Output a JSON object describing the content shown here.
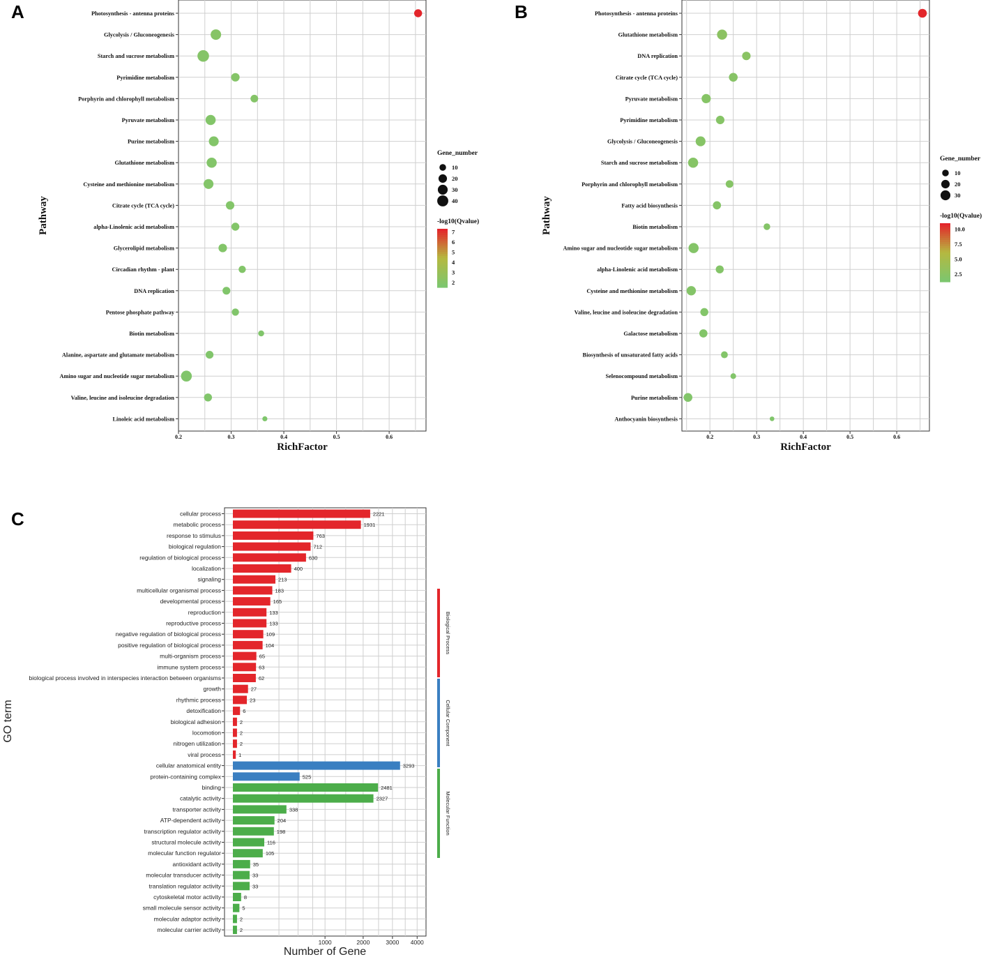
{
  "panels": {
    "A": "A",
    "B": "B",
    "C": "C"
  },
  "colors": {
    "low": "#7dc66e",
    "mid": "#b5b840",
    "high": "#e3262b",
    "bp": "#e3262b",
    "cc": "#3a7fc1",
    "mf": "#4cad4a",
    "grid": "#cfcfcf"
  },
  "chart_data": [
    {
      "id": "A",
      "type": "scatter",
      "xlabel": "RichFactor",
      "ylabel": "Pathway",
      "xlim": [
        0.2,
        0.67
      ],
      "xticks": [
        "0.2",
        "0.3",
        "0.4",
        "0.5",
        "0.6"
      ],
      "size_legend_title": "Gene_number",
      "size_legend": [
        "10",
        "20",
        "30",
        "40"
      ],
      "color_legend_title": "-log10(Qvalue)",
      "color_legend": [
        "7",
        "6",
        "5",
        "4",
        "3",
        "2"
      ],
      "color_range": [
        1.5,
        7.3
      ],
      "points": [
        {
          "pathway": "Photosynthesis - antenna proteins",
          "rich": 0.655,
          "genes": 17,
          "q": 7.3
        },
        {
          "pathway": "Glycolysis / Gluconeogenesis",
          "rich": 0.271,
          "genes": 35,
          "q": 2.0
        },
        {
          "pathway": "Starch and sucrose metabolism",
          "rich": 0.247,
          "genes": 45,
          "q": 1.9
        },
        {
          "pathway": "Pyrimidine metabolism",
          "rich": 0.308,
          "genes": 20,
          "q": 1.9
        },
        {
          "pathway": "Porphyrin and chlorophyll metabolism",
          "rich": 0.344,
          "genes": 15,
          "q": 1.9
        },
        {
          "pathway": "Pyruvate metabolism",
          "rich": 0.261,
          "genes": 32,
          "q": 1.8
        },
        {
          "pathway": "Purine metabolism",
          "rich": 0.267,
          "genes": 30,
          "q": 1.8
        },
        {
          "pathway": "Glutathione metabolism",
          "rich": 0.263,
          "genes": 32,
          "q": 1.8
        },
        {
          "pathway": "Cysteine and methionine metabolism",
          "rich": 0.257,
          "genes": 30,
          "q": 1.8
        },
        {
          "pathway": "Citrate cycle (TCA cycle)",
          "rich": 0.298,
          "genes": 20,
          "q": 1.8
        },
        {
          "pathway": "alpha-Linolenic acid metabolism",
          "rich": 0.308,
          "genes": 17,
          "q": 1.8
        },
        {
          "pathway": "Glycerolipid metabolism",
          "rich": 0.284,
          "genes": 20,
          "q": 1.8
        },
        {
          "pathway": "Circadian rhythm - plant",
          "rich": 0.321,
          "genes": 13,
          "q": 1.8
        },
        {
          "pathway": "DNA replication",
          "rich": 0.291,
          "genes": 16,
          "q": 1.7
        },
        {
          "pathway": "Pentose phosphate pathway",
          "rich": 0.308,
          "genes": 13,
          "q": 1.7
        },
        {
          "pathway": "Biotin metabolism",
          "rich": 0.357,
          "genes": 7,
          "q": 1.7
        },
        {
          "pathway": "Alanine, aspartate and glutamate metabolism",
          "rich": 0.259,
          "genes": 16,
          "q": 1.7
        },
        {
          "pathway": "Amino sugar and nucleotide sugar metabolism",
          "rich": 0.215,
          "genes": 38,
          "q": 1.7
        },
        {
          "pathway": "Valine, leucine and isoleucine degradation",
          "rich": 0.256,
          "genes": 17,
          "q": 1.7
        },
        {
          "pathway": "Linoleic acid metabolism",
          "rich": 0.364,
          "genes": 4,
          "q": 1.6
        }
      ]
    },
    {
      "id": "B",
      "type": "scatter",
      "xlabel": "RichFactor",
      "ylabel": "Pathway",
      "xlim": [
        0.14,
        0.67
      ],
      "xticks": [
        "0.2",
        "0.3",
        "0.4",
        "0.5",
        "0.6"
      ],
      "size_legend_title": "Gene_number",
      "size_legend": [
        "10",
        "20",
        "30"
      ],
      "color_legend_title": "-log10(Qvalue)",
      "color_legend": [
        "10.0",
        "7.5",
        "5.0",
        "2.5"
      ],
      "color_range": [
        1.2,
        11.0
      ],
      "points": [
        {
          "pathway": "Photosynthesis - antenna proteins",
          "rich": 0.655,
          "genes": 22,
          "q": 11.0
        },
        {
          "pathway": "Glutathione metabolism",
          "rich": 0.226,
          "genes": 32,
          "q": 2.5
        },
        {
          "pathway": "DNA replication",
          "rich": 0.278,
          "genes": 20,
          "q": 2.3
        },
        {
          "pathway": "Citrate cycle (TCA cycle)",
          "rich": 0.25,
          "genes": 22,
          "q": 2.1
        },
        {
          "pathway": "Pyruvate metabolism",
          "rich": 0.192,
          "genes": 25,
          "q": 2.0
        },
        {
          "pathway": "Pyrimidine metabolism",
          "rich": 0.222,
          "genes": 20,
          "q": 2.0
        },
        {
          "pathway": "Glycolysis / Gluconeogenesis",
          "rich": 0.18,
          "genes": 30,
          "q": 2.0
        },
        {
          "pathway": "Starch and sucrose metabolism",
          "rich": 0.164,
          "genes": 32,
          "q": 2.0
        },
        {
          "pathway": "Porphyrin and chlorophyll metabolism",
          "rich": 0.242,
          "genes": 15,
          "q": 2.0
        },
        {
          "pathway": "Fatty acid biosynthesis",
          "rich": 0.215,
          "genes": 18,
          "q": 1.9
        },
        {
          "pathway": "Biotin metabolism",
          "rich": 0.322,
          "genes": 10,
          "q": 1.8
        },
        {
          "pathway": "Amino sugar and nucleotide sugar metabolism",
          "rich": 0.165,
          "genes": 32,
          "q": 1.8
        },
        {
          "pathway": "alpha-Linolenic acid metabolism",
          "rich": 0.221,
          "genes": 17,
          "q": 1.8
        },
        {
          "pathway": "Cysteine and methionine metabolism",
          "rich": 0.16,
          "genes": 26,
          "q": 1.8
        },
        {
          "pathway": "Valine, leucine and isoleucine degradation",
          "rich": 0.188,
          "genes": 17,
          "q": 1.7
        },
        {
          "pathway": "Galactose metabolism",
          "rich": 0.186,
          "genes": 18,
          "q": 1.7
        },
        {
          "pathway": "Biosynthesis of unsaturated fatty acids",
          "rich": 0.231,
          "genes": 11,
          "q": 1.7
        },
        {
          "pathway": "Selenocompound metabolism",
          "rich": 0.25,
          "genes": 6,
          "q": 1.6
        },
        {
          "pathway": "Purine metabolism",
          "rich": 0.153,
          "genes": 22,
          "q": 1.6
        },
        {
          "pathway": "Anthocyanin biosynthesis",
          "rich": 0.333,
          "genes": 3,
          "q": 1.5
        }
      ]
    },
    {
      "id": "C",
      "type": "bar",
      "orientation": "horizontal",
      "xlabel": "Number of Gene",
      "ylabel": "GO term",
      "xscale": "sqrt",
      "xticks": [
        1000,
        2000,
        3000,
        4000
      ],
      "groups": [
        {
          "name": "Biological Process",
          "color": "#e3262b",
          "count": 23
        },
        {
          "name": "Cellular Component",
          "color": "#3a7fc1",
          "count": 2
        },
        {
          "name": "Molecular Function",
          "color": "#4cad4a",
          "count": 14
        }
      ],
      "bars": [
        {
          "term": "cellular process",
          "value": 2221,
          "group": 0
        },
        {
          "term": "metabolic process",
          "value": 1931,
          "group": 0
        },
        {
          "term": "response to stimulus",
          "value": 763,
          "group": 0
        },
        {
          "term": "biological regulation",
          "value": 712,
          "group": 0
        },
        {
          "term": "regulation of biological process",
          "value": 630,
          "group": 0
        },
        {
          "term": "localization",
          "value": 400,
          "group": 0
        },
        {
          "term": "signaling",
          "value": 213,
          "group": 0
        },
        {
          "term": "multicellular organismal process",
          "value": 183,
          "group": 0
        },
        {
          "term": "developmental process",
          "value": 165,
          "group": 0
        },
        {
          "term": "reproduction",
          "value": 133,
          "group": 0
        },
        {
          "term": "reproductive process",
          "value": 133,
          "group": 0
        },
        {
          "term": "negative regulation of biological process",
          "value": 109,
          "group": 0
        },
        {
          "term": "positive regulation of biological process",
          "value": 104,
          "group": 0
        },
        {
          "term": "multi-organism process",
          "value": 65,
          "group": 0
        },
        {
          "term": "immune system process",
          "value": 63,
          "group": 0
        },
        {
          "term": "biological process involved in interspecies interaction between organisms",
          "value": 62,
          "group": 0
        },
        {
          "term": "growth",
          "value": 27,
          "group": 0
        },
        {
          "term": "rhythmic process",
          "value": 23,
          "group": 0
        },
        {
          "term": "detoxification",
          "value": 6,
          "group": 0
        },
        {
          "term": "biological adhesion",
          "value": 2,
          "group": 0
        },
        {
          "term": "locomotion",
          "value": 2,
          "group": 0
        },
        {
          "term": "nitrogen utilization",
          "value": 2,
          "group": 0
        },
        {
          "term": "viral process",
          "value": 1,
          "group": 0
        },
        {
          "term": "cellular anatomical entity",
          "value": 3293,
          "group": 1
        },
        {
          "term": "protein-containing complex",
          "value": 525,
          "group": 1
        },
        {
          "term": "binding",
          "value": 2481,
          "group": 2
        },
        {
          "term": "catalytic activity",
          "value": 2327,
          "group": 2
        },
        {
          "term": "transporter activity",
          "value": 338,
          "group": 2
        },
        {
          "term": "ATP-dependent activity",
          "value": 204,
          "group": 2
        },
        {
          "term": "transcription regulator activity",
          "value": 198,
          "group": 2
        },
        {
          "term": "structural molecule activity",
          "value": 116,
          "group": 2
        },
        {
          "term": "molecular function regulator",
          "value": 105,
          "group": 2
        },
        {
          "term": "antioxidant activity",
          "value": 35,
          "group": 2
        },
        {
          "term": "molecular transducer activity",
          "value": 33,
          "group": 2
        },
        {
          "term": "translation regulator activity",
          "value": 33,
          "group": 2
        },
        {
          "term": "cytoskeletal motor activity",
          "value": 8,
          "group": 2
        },
        {
          "term": "small molecule sensor activity",
          "value": 5,
          "group": 2
        },
        {
          "term": "molecular adaptor activity",
          "value": 2,
          "group": 2
        },
        {
          "term": "molecular carrier activity",
          "value": 2,
          "group": 2
        }
      ]
    }
  ]
}
